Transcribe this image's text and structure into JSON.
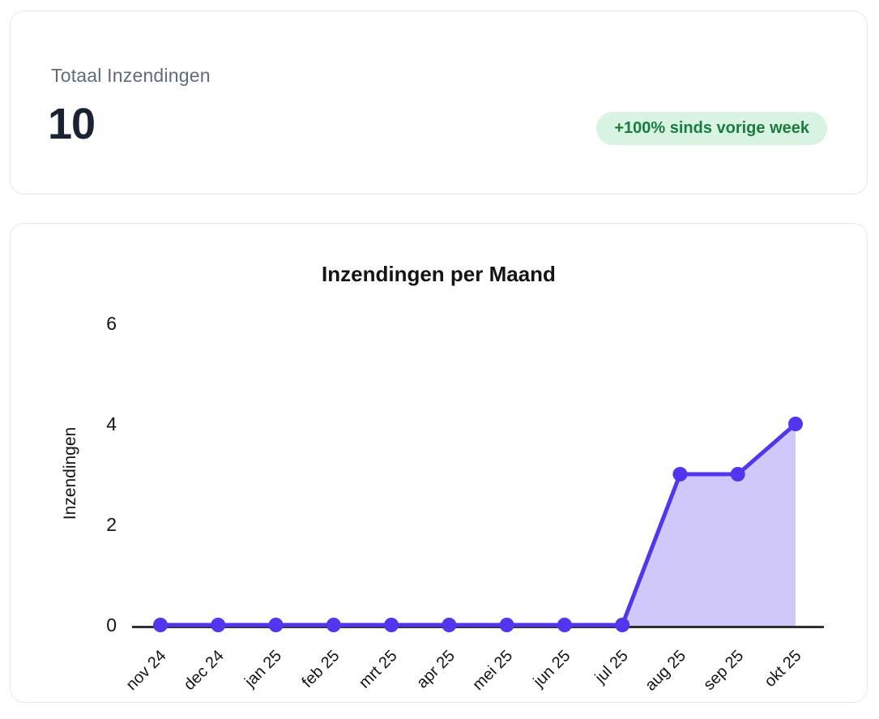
{
  "summary_card": {
    "label": "Totaal Inzendingen",
    "value": "10",
    "badge": "+100% sinds vorige week"
  },
  "chart_data": {
    "type": "line",
    "title": "Inzendingen per Maand",
    "categories": [
      "nov 24",
      "dec 24",
      "jan 25",
      "feb 25",
      "mrt 25",
      "apr 25",
      "mei 25",
      "jun 25",
      "jul 25",
      "aug 25",
      "sep 25",
      "okt 25"
    ],
    "values": [
      0,
      0,
      0,
      0,
      0,
      0,
      0,
      0,
      0,
      3,
      3,
      4
    ],
    "xlabel": "",
    "ylabel": "Inzendingen",
    "ylim": [
      0,
      6
    ],
    "yticks": [
      0,
      2,
      4,
      6
    ],
    "grid": false,
    "legend": false,
    "area": true,
    "line_color": "#5335ee",
    "fill_color": "rgba(83,53,238,0.27)",
    "axis_color": "#2f2f2f",
    "point_radius": 9
  },
  "colors": {
    "card_border": "#e8e8ec",
    "metric_label": "#5f6b7d",
    "metric_value": "#1a2333",
    "badge_bg": "#d8f3e2",
    "badge_text": "#1a7c40"
  }
}
